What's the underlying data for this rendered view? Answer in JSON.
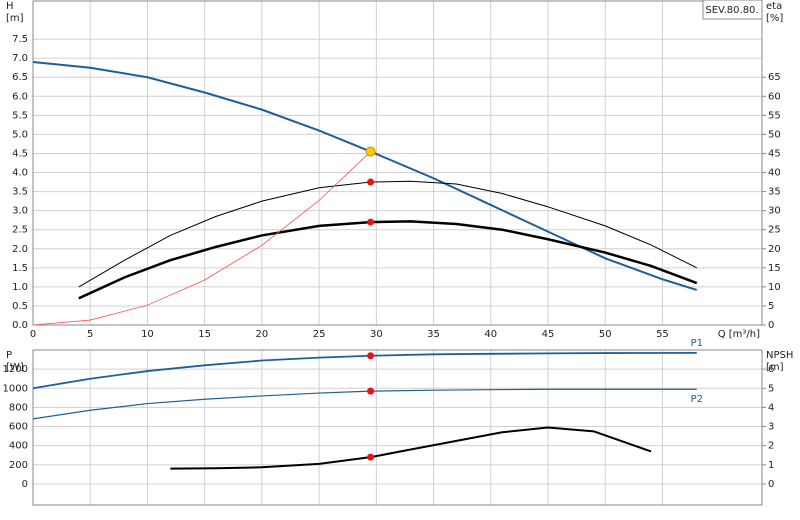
{
  "chart_data": [
    {
      "type": "line",
      "title": "SEV.80.80.",
      "xlabel": "Q [m³/h]",
      "ylabel": "H",
      "yunit": "[m]",
      "y2label": "eta",
      "y2unit": "[%]",
      "xlim": [
        0,
        63.7
      ],
      "xticks": [
        0,
        5,
        10,
        15,
        20,
        25,
        30,
        35,
        40,
        45,
        50,
        55
      ],
      "ylim": [
        0,
        8.5
      ],
      "yticks": [
        {
          "value": 0,
          "label": "0.0"
        },
        0.5,
        {
          "value": 1,
          "label": "1.0"
        },
        1.5,
        {
          "value": 2,
          "label": "2.0"
        },
        2.5,
        {
          "value": 3,
          "label": "3.0"
        },
        3.5,
        {
          "value": 4,
          "label": "4.0"
        },
        4.5,
        {
          "value": 5,
          "label": "5.0"
        },
        5.5,
        {
          "value": 6,
          "label": "6.0"
        },
        6.5,
        {
          "value": 7,
          "label": "7.0"
        },
        7.5
      ],
      "y2lim": [
        0,
        85
      ],
      "y2ticks": [
        0,
        5,
        10,
        15,
        20,
        25,
        30,
        35,
        40,
        45,
        50,
        55,
        60,
        65
      ],
      "grid": true,
      "series": [
        {
          "color": "#1f5f99",
          "width": 2,
          "axis": "y",
          "x": [
            0,
            5,
            10,
            15,
            20,
            25,
            29.5,
            35,
            40,
            45,
            50,
            55,
            58
          ],
          "values": [
            6.9,
            6.75,
            6.5,
            6.1,
            5.65,
            5.1,
            4.55,
            3.85,
            3.15,
            2.45,
            1.75,
            1.2,
            0.92
          ]
        },
        {
          "color": "#000000",
          "width": 1,
          "axis": "y2",
          "x": [
            4,
            8,
            12,
            16,
            20,
            25,
            29.5,
            33,
            37,
            41,
            45,
            50,
            54,
            58
          ],
          "values": [
            10,
            17,
            23.5,
            28.5,
            32.5,
            36,
            37.5,
            37.7,
            37,
            34.5,
            31,
            26,
            21,
            15
          ]
        },
        {
          "color": "#000000",
          "width": 2.5,
          "axis": "y2",
          "x": [
            4,
            8,
            12,
            16,
            20,
            25,
            29.5,
            33,
            37,
            41,
            45,
            50,
            54,
            58
          ],
          "values": [
            7,
            12.5,
            17,
            20.5,
            23.5,
            26,
            27,
            27.2,
            26.5,
            25,
            22.5,
            19,
            15.5,
            11
          ]
        },
        {
          "color": "#ff4d4d",
          "width": 0.8,
          "axis": "y",
          "x": [
            0,
            5,
            10,
            15,
            20,
            25,
            29.5
          ],
          "values": [
            0,
            0.13,
            0.52,
            1.18,
            2.09,
            3.27,
            4.55
          ]
        }
      ],
      "markers": [
        {
          "x": 29.5,
          "value": 4.55,
          "axis": "y",
          "color": "#ffcc00"
        },
        {
          "x": 29.5,
          "value": 37.5,
          "axis": "y2",
          "color": "#ee1111"
        },
        {
          "x": 29.5,
          "value": 27,
          "axis": "y2",
          "color": "#ee1111"
        }
      ]
    },
    {
      "type": "line",
      "ylabel": "P",
      "yunit": "[W]",
      "y2label": "NPSH",
      "y2unit": "[m]",
      "xlim": [
        0,
        63.7
      ],
      "ylim": [
        -220,
        1400
      ],
      "yticks": [
        0,
        200,
        400,
        600,
        800,
        1000,
        1200
      ],
      "y2lim": [
        -1.1,
        7
      ],
      "y2ticks": [
        0,
        1,
        2,
        3,
        4,
        5,
        6
      ],
      "grid": true,
      "series": [
        {
          "name": "P1",
          "color": "#1f5f99",
          "width": 1.8,
          "axis": "y",
          "x": [
            0,
            5,
            10,
            15,
            20,
            25,
            29.5,
            35,
            40,
            45,
            50,
            58
          ],
          "values": [
            1000,
            1100,
            1180,
            1240,
            1290,
            1320,
            1340,
            1355,
            1360,
            1365,
            1368,
            1370
          ]
        },
        {
          "name": "P2",
          "color": "#1f5f99",
          "width": 1.2,
          "axis": "y",
          "x": [
            0,
            5,
            10,
            15,
            20,
            25,
            29.5,
            35,
            40,
            45,
            50,
            58
          ],
          "values": [
            680,
            770,
            840,
            885,
            920,
            950,
            970,
            980,
            985,
            990,
            990,
            990
          ]
        },
        {
          "color": "#000000",
          "width": 2,
          "axis": "y2",
          "x": [
            12,
            16,
            20,
            25,
            29.5,
            33,
            37,
            41,
            45,
            49,
            54
          ],
          "values": [
            0.8,
            0.82,
            0.87,
            1.05,
            1.4,
            1.8,
            2.25,
            2.7,
            2.95,
            2.75,
            1.7
          ]
        }
      ],
      "markers": [
        {
          "x": 29.5,
          "value": 1340,
          "axis": "y",
          "color": "#ee1111"
        },
        {
          "x": 29.5,
          "value": 970,
          "axis": "y",
          "color": "#ee1111"
        },
        {
          "x": 29.5,
          "value": 1.4,
          "axis": "y2",
          "color": "#ee1111"
        }
      ]
    }
  ]
}
